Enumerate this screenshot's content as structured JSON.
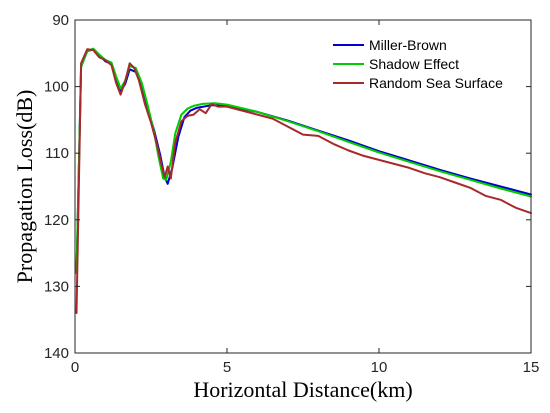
{
  "chart_data": {
    "type": "line",
    "xlabel": "Horizontal Distance(km)",
    "ylabel": "Propagation Loss(dB)",
    "xlim": [
      0,
      15
    ],
    "ylim": [
      140,
      90
    ],
    "y_reversed": true,
    "xticks": [
      0,
      5,
      10,
      15
    ],
    "yticks": [
      90,
      100,
      110,
      120,
      130,
      140
    ],
    "grid": false,
    "legend_position": "top-right",
    "series": [
      {
        "name": "Miller-Brown",
        "color": "#0000cc",
        "x": [
          0.05,
          0.2,
          0.4,
          0.6,
          0.8,
          1.0,
          1.2,
          1.35,
          1.5,
          1.65,
          1.8,
          2.0,
          2.2,
          2.4,
          2.6,
          2.8,
          2.95,
          3.05,
          3.2,
          3.4,
          3.6,
          3.8,
          4.0,
          4.5,
          5.0,
          6.0,
          7.0,
          8.0,
          9.0,
          10.0,
          11.0,
          12.0,
          13.0,
          14.0,
          15.0
        ],
        "y": [
          128,
          97,
          94.7,
          94.4,
          95.3,
          96.2,
          96.6,
          98.8,
          100.7,
          99.6,
          97.4,
          97.8,
          100.2,
          103.5,
          106.5,
          110.2,
          113.6,
          114.6,
          112.2,
          107.5,
          104.6,
          103.6,
          103.2,
          102.8,
          102.9,
          103.8,
          105.1,
          106.6,
          108.1,
          109.7,
          111.1,
          112.5,
          113.8,
          115.0,
          116.2
        ]
      },
      {
        "name": "Shadow Effect",
        "color": "#00cc00",
        "x": [
          0.05,
          0.2,
          0.4,
          0.6,
          0.8,
          1.0,
          1.2,
          1.35,
          1.5,
          1.65,
          1.8,
          2.0,
          2.2,
          2.4,
          2.6,
          2.75,
          2.9,
          3.0,
          3.15,
          3.3,
          3.5,
          3.7,
          3.9,
          4.2,
          4.6,
          5.0,
          6.0,
          7.0,
          8.0,
          9.0,
          10.0,
          11.0,
          12.0,
          13.0,
          14.0,
          15.0
        ],
        "y": [
          128,
          97,
          94.7,
          94.3,
          95.2,
          96.0,
          96.4,
          98.4,
          100.3,
          99.1,
          96.9,
          97.2,
          99.5,
          103.0,
          106.8,
          110.6,
          113.8,
          114.0,
          111.3,
          107.0,
          104.2,
          103.3,
          102.9,
          102.6,
          102.5,
          102.7,
          103.8,
          105.2,
          106.7,
          108.3,
          109.9,
          111.3,
          112.7,
          114.0,
          115.3,
          116.5
        ]
      },
      {
        "name": "Random Sea Surface",
        "color": "#a52a2a",
        "x": [
          0.05,
          0.2,
          0.4,
          0.6,
          0.8,
          1.0,
          1.2,
          1.35,
          1.5,
          1.65,
          1.8,
          1.95,
          2.1,
          2.3,
          2.5,
          2.7,
          2.85,
          2.95,
          3.05,
          3.15,
          3.3,
          3.5,
          3.7,
          3.9,
          4.1,
          4.3,
          4.5,
          4.7,
          5.0,
          5.5,
          6.0,
          6.5,
          7.0,
          7.5,
          8.0,
          8.5,
          9.0,
          9.5,
          10.0,
          10.5,
          11.0,
          11.5,
          12.0,
          12.5,
          13.0,
          13.5,
          14.0,
          14.5,
          15.0
        ],
        "y": [
          134,
          96.5,
          94.4,
          94.5,
          95.6,
          96.0,
          96.8,
          99.4,
          101.2,
          99.2,
          96.5,
          97.2,
          99.0,
          102.6,
          105.4,
          108.8,
          111.8,
          113.6,
          112.0,
          113.8,
          108.4,
          105.2,
          104.4,
          104.2,
          103.4,
          104.0,
          102.6,
          103.0,
          103.0,
          103.6,
          104.2,
          104.8,
          106.0,
          107.2,
          107.4,
          108.6,
          109.6,
          110.4,
          111.0,
          111.6,
          112.2,
          113.0,
          113.6,
          114.4,
          115.2,
          116.4,
          117.0,
          118.2,
          119.0
        ]
      }
    ]
  }
}
